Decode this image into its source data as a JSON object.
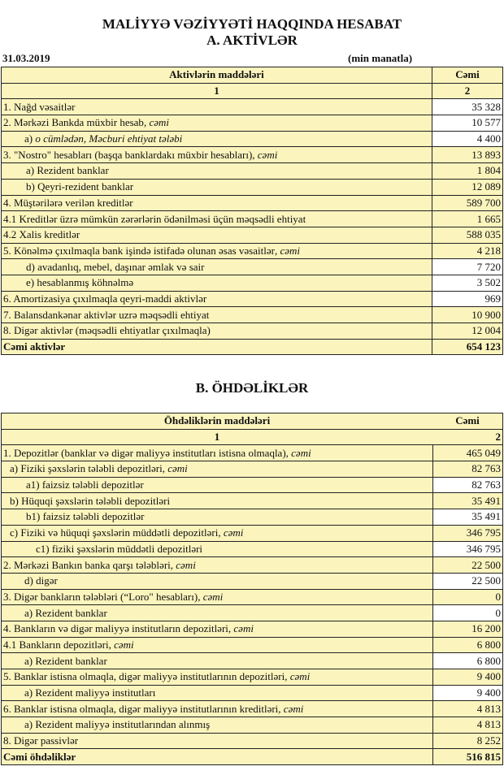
{
  "header": {
    "title": "MALİYYƏ VƏZİYYƏTİ HAQQINDA HESABAT",
    "subtitle": "A. AKTİVLƏR",
    "date": "31.03.2019",
    "unit": "(min manatla)"
  },
  "assets": {
    "col_header_items": "Aktivlərin   maddələri",
    "col_header_total": "Cəmi",
    "col_num_1": "1",
    "col_num_2": "2",
    "rows": [
      {
        "label": "1. Nağd vəsaitlər",
        "value": "35 328",
        "indent": 0,
        "value_highlight": false
      },
      {
        "label": "2. Mərkəzi Bankda müxbir hesab",
        "suffix": ", cəmi",
        "value": "10 577",
        "indent": 0,
        "value_highlight": false
      },
      {
        "label": "a) ",
        "italic_label": "o cümlədən, Məcburi ehtiyat tələbi",
        "value": "4 400",
        "indent": 2,
        "value_highlight": false
      },
      {
        "label": "3. \"Nostro\" hesabları (başqa banklardakı müxbir hesabları)",
        "suffix": ", cəmi",
        "value": "13 893",
        "indent": 0,
        "value_highlight": true
      },
      {
        "label": "a) Rezident banklar",
        "value": "1 804",
        "indent": 3,
        "value_highlight": true
      },
      {
        "label": "b) Qeyri-rezident banklar",
        "value": "12 089",
        "indent": 3,
        "value_highlight": true
      },
      {
        "label": "4. Müştərilərə verilən kreditlər",
        "value": "589 700",
        "indent": 0,
        "value_highlight": true
      },
      {
        "label": "4.1 Kreditlər üzrə mümkün zərərlərin ödənilməsi üçün məqsədli ehtiyat",
        "value": "1 665",
        "indent": 0,
        "value_highlight": true
      },
      {
        "label": "4.2 Xalis kreditlər",
        "value": "588 035",
        "indent": 0,
        "value_highlight": true
      },
      {
        "label": "5. Könəlmə çıxılmaqla bank işində istifadə olunan əsas vəsaitlər",
        "suffix": ", cəmi",
        "value": "4 218",
        "indent": 0,
        "value_highlight": true
      },
      {
        "label": "d) avadanlıq, mebel, daşınar əmlak və sair",
        "value": "7 720",
        "indent": 3,
        "value_highlight": false
      },
      {
        "label": "e) hesablanmış köhnəlmə",
        "value": "3 502",
        "indent": 3,
        "value_highlight": false
      },
      {
        "label": "6. Amortizasiya çıxılmaqla qeyri-maddi aktivlər",
        "value": "969",
        "indent": 0,
        "value_highlight": false
      },
      {
        "label": "7. Balansdankənar aktivlər uzrə məqsədli ehtiyat",
        "value": "10 900",
        "indent": 0,
        "value_highlight": true
      },
      {
        "label": "8. Digər aktivlər (məqsədli ehtiyatlar çıxılmaqla)",
        "value": "12 004",
        "indent": 0,
        "value_highlight": true
      },
      {
        "label": "Cəmi aktivlər",
        "value": "654 123",
        "indent": 0,
        "value_highlight": true,
        "total": true
      }
    ]
  },
  "liabilities": {
    "section_title": "B. ÖHDƏLİKLƏR",
    "col_header_items": "Öhdəliklərin maddələri",
    "col_header_total": "Cəmi",
    "col_num_1": "1",
    "col_num_2": "2",
    "rows": [
      {
        "label": "1. Depozitlər (banklar və digər maliyyə institutları istisna olmaqla)",
        "suffix": ", cəmi",
        "value": "465 049",
        "indent": 0,
        "value_highlight": true
      },
      {
        "label": "a)  Fiziki şəxslərin tələbli depozitləri",
        "suffix": ", cəmi",
        "value": "82 763",
        "indent": 1,
        "value_highlight": true
      },
      {
        "label": "a1) faizsiz tələbli depozitlər",
        "value": "82 763",
        "indent": 3,
        "value_highlight": false
      },
      {
        "label": "b) Hüquqi şəxslərin tələbli depozitləri",
        "value": "35 491",
        "indent": 1,
        "value_highlight": true
      },
      {
        "label": "b1) faizsiz tələbli depozitlər",
        "value": "35 491",
        "indent": 3,
        "value_highlight": false
      },
      {
        "label": "c) Fiziki və hüquqi şəxslərin müddətli depozitləri",
        "suffix": ", cəmi",
        "value": "346 795",
        "indent": 1,
        "value_highlight": true
      },
      {
        "label": "c1) fiziki şəxslərin müddətli depozitləri",
        "value": "346 795",
        "indent": 4,
        "value_highlight": false
      },
      {
        "label": "2. Mərkəzi Bankın banka qarşı tələbləri",
        "suffix": ", cəmi",
        "value": "22 500",
        "indent": 0,
        "value_highlight": true
      },
      {
        "label": "d) digər",
        "value": "22 500",
        "indent": 2,
        "value_highlight": false
      },
      {
        "label": "3. Digər bankların tələbləri (“Loro\" hesabları)",
        "suffix": ", cəmi",
        "value": "0",
        "indent": 0,
        "value_highlight": true
      },
      {
        "label": "a) Rezident banklar",
        "value": "0",
        "indent": 2,
        "value_highlight": false
      },
      {
        "label": "4. Bankların və digər maliyyə institutların depozitləri",
        "suffix": ", cəmi",
        "value": "16 200",
        "indent": 0,
        "value_highlight": true
      },
      {
        "label": "4.1  Bankların depozitləri",
        "suffix": ", cəmi",
        "value": "6 800",
        "indent": 0,
        "value_highlight": true
      },
      {
        "label": "a) Rezident banklar",
        "value": "6 800",
        "indent": 2,
        "value_highlight": false
      },
      {
        "label": "5. Banklar istisna olmaqla, digər maliyyə institutlarının depozitləri",
        "suffix": ", cəmi",
        "value": "9 400",
        "indent": 0,
        "value_highlight": true
      },
      {
        "label": "a) Rezident maliyyə institutları",
        "value": "9 400",
        "indent": 2,
        "value_highlight": false
      },
      {
        "label": "6. Banklar istisna olmaqla, digər maliyyə institutlarının kreditləri",
        "suffix": ", cəmi",
        "value": "4 813",
        "indent": 0,
        "value_highlight": true
      },
      {
        "label": "a) Rezident maliyyə institutlarından alınmış",
        "value": "4 813",
        "indent": 2,
        "value_highlight": true
      },
      {
        "label": "8. Digər passivlər",
        "value": "8 252",
        "indent": 0,
        "value_highlight": true
      },
      {
        "label": "Cəmi öhdəliklər",
        "value": "516 815",
        "indent": 0,
        "value_highlight": true,
        "total": true
      }
    ]
  },
  "colors": {
    "cell_fill": "#fbf4bd",
    "plain_fill": "#ffffff",
    "border": "#222222"
  }
}
